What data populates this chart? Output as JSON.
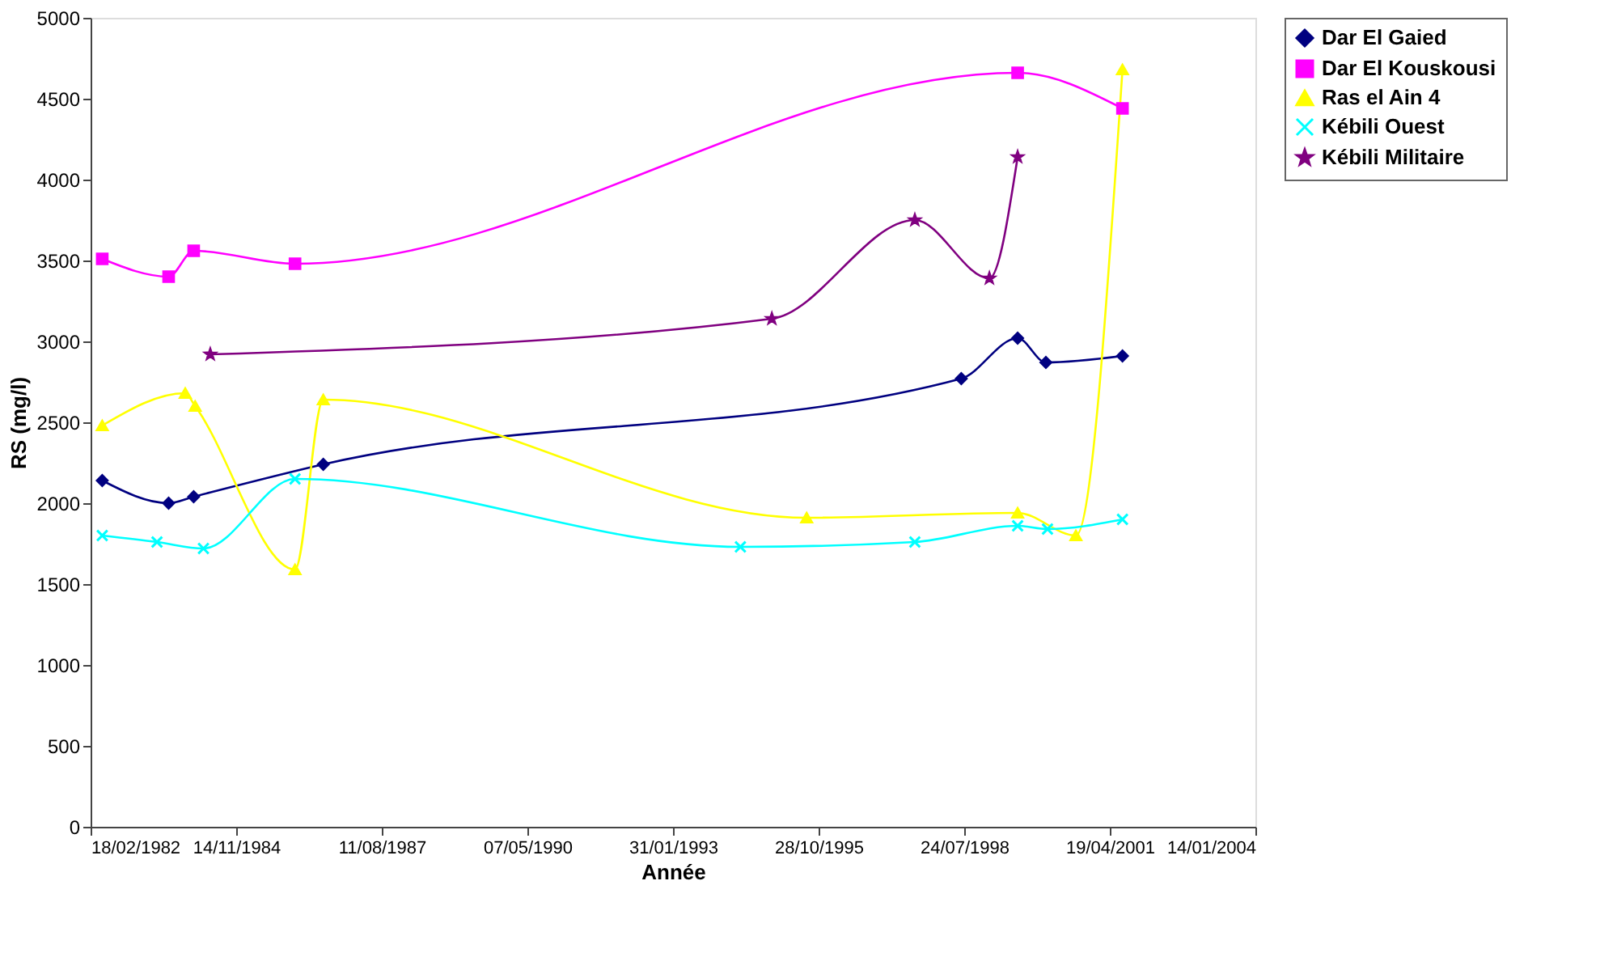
{
  "chart_data": {
    "type": "line",
    "xlabel": "Année",
    "ylabel": "RS (mg/l)",
    "xlim": [
      "1982-02-18",
      "2004-01-14"
    ],
    "xticks": [
      {
        "value": "1982-02-18",
        "label": "18/02/1982"
      },
      {
        "value": "1984-11-14",
        "label": "14/11/1984"
      },
      {
        "value": "1987-08-11",
        "label": "11/08/1987"
      },
      {
        "value": "1990-05-07",
        "label": "07/05/1990"
      },
      {
        "value": "1993-01-31",
        "label": "31/01/1993"
      },
      {
        "value": "1995-10-28",
        "label": "28/10/1995"
      },
      {
        "value": "1998-07-24",
        "label": "24/07/1998"
      },
      {
        "value": "2001-04-19",
        "label": "19/04/2001"
      },
      {
        "value": "2004-01-14",
        "label": "14/01/2004"
      }
    ],
    "ylim": [
      0,
      5000
    ],
    "yticks": [
      0,
      500,
      1000,
      1500,
      2000,
      2500,
      3000,
      3500,
      4000,
      4500,
      5000
    ],
    "grid": false,
    "legend": "right",
    "line_style": "solid",
    "series": [
      {
        "name": "Dar El Gaied",
        "color": "#000080",
        "marker": "diamond",
        "x": [
          "1982-05-09",
          "1983-08-08",
          "1984-01-27",
          "1986-07-05",
          "1998-07-04",
          "1999-07-26",
          "2000-02-05",
          "2001-07-15"
        ],
        "values": [
          2140,
          2000,
          2040,
          2240,
          2770,
          3020,
          2870,
          2910
        ]
      },
      {
        "name": "Dar El Kouskousi",
        "color": "#ff00ff",
        "marker": "square",
        "x": [
          "1982-05-09",
          "1983-08-08",
          "1984-01-27",
          "1985-12-23",
          "1999-07-26",
          "2001-07-15"
        ],
        "values": [
          3510,
          3400,
          3560,
          3480,
          4660,
          4440
        ]
      },
      {
        "name": "Ras el Ain  4",
        "color": "#ffff00",
        "marker": "triangle",
        "x": [
          "1982-05-09",
          "1983-11-30",
          "1984-02-06",
          "1985-12-23",
          "1986-07-05",
          "1995-08-07",
          "1999-07-26",
          "2000-08-29",
          "2001-07-15"
        ],
        "values": [
          2480,
          2680,
          2600,
          1590,
          2640,
          1910,
          1940,
          1800,
          4680
        ]
      },
      {
        "name": "Kébili Ouest",
        "color": "#00ffff",
        "marker": "cross",
        "x": [
          "1982-05-09",
          "1983-05-20",
          "1984-04-03",
          "1985-12-23",
          "1994-05-09",
          "1997-08-19",
          "1999-07-26",
          "2000-02-16",
          "2001-07-15"
        ],
        "values": [
          1800,
          1760,
          1720,
          2150,
          1730,
          1760,
          1860,
          1840,
          1900
        ]
      },
      {
        "name": "Kébili Militaire",
        "color": "#800080",
        "marker": "star",
        "x": [
          "1984-05-20",
          "1994-12-11",
          "1997-08-19",
          "1999-01-13",
          "1999-07-26"
        ],
        "values": [
          2920,
          3140,
          3750,
          3390,
          4140
        ]
      }
    ]
  }
}
